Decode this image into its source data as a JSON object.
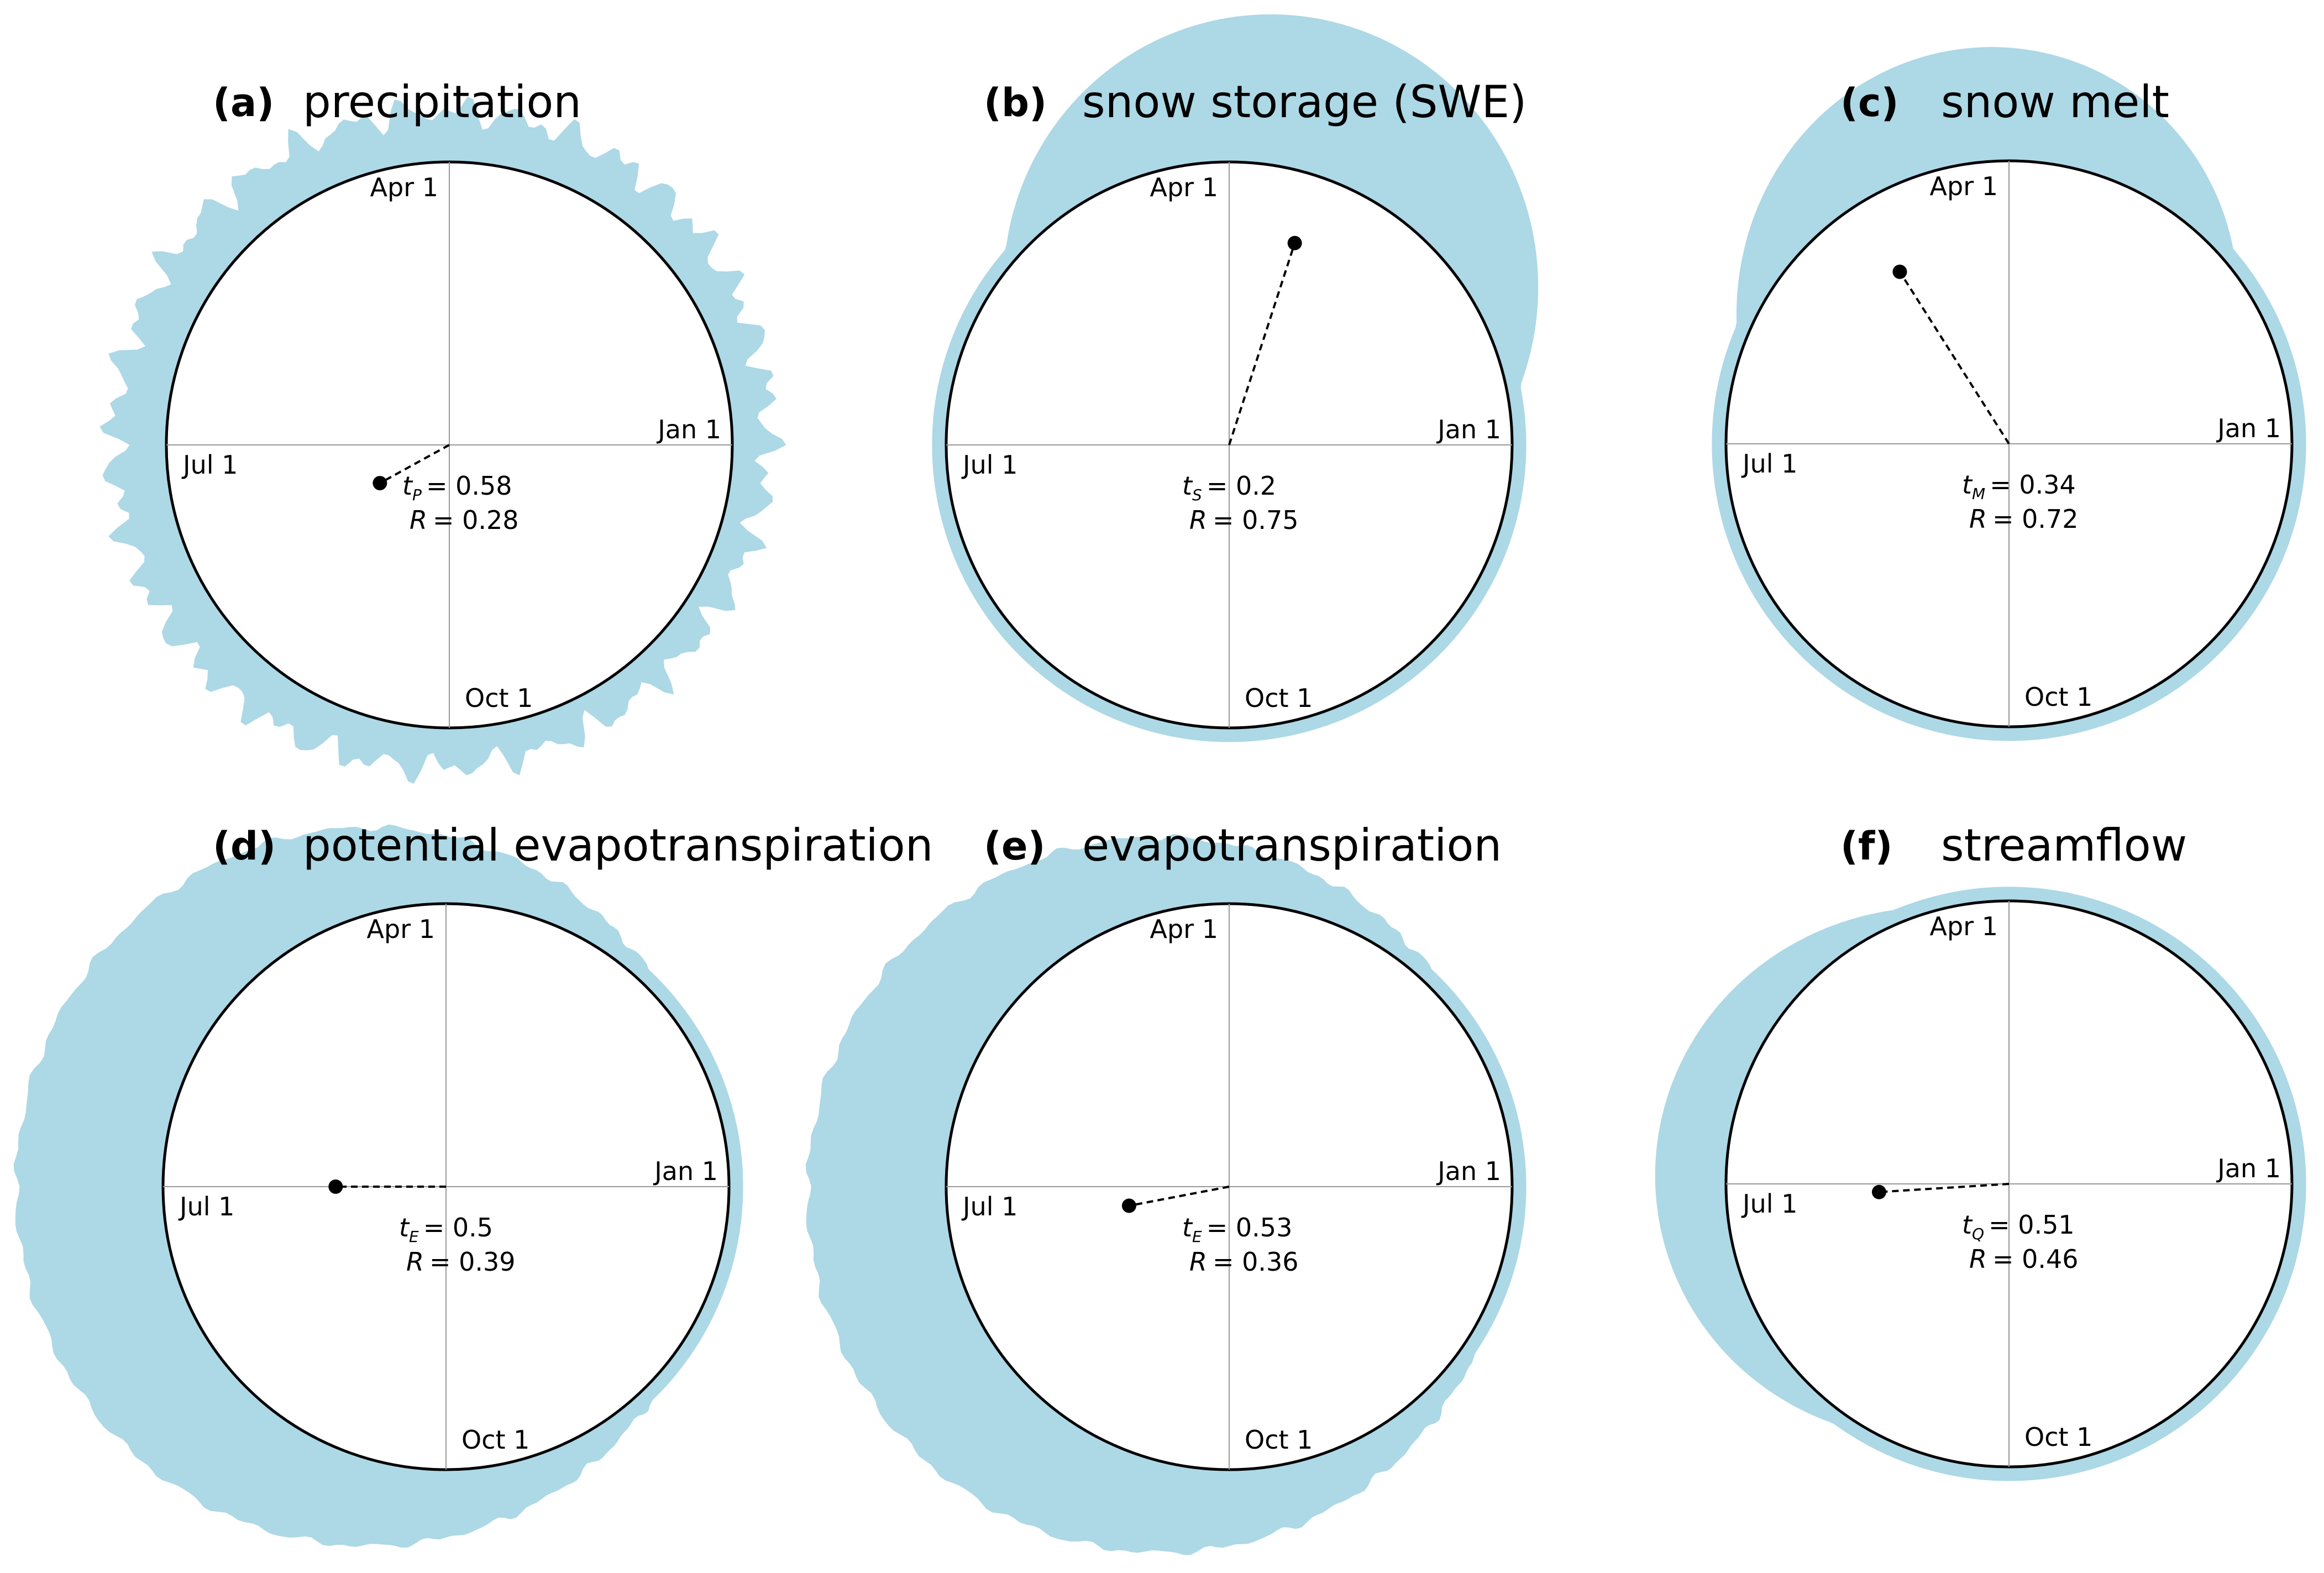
{
  "chart_data": [
    {
      "type": "polar-area",
      "letter": "(a)",
      "title": "precipitation",
      "axis_labels": {
        "east": "Jan 1",
        "north": "Apr 1",
        "west": "Jul 1",
        "south": "Oct 1"
      },
      "timing_label": "= 0.58",
      "timing_symbol": "P",
      "t_value": 0.58,
      "r_label": "= 0.28",
      "r_value": 0.28,
      "envelope": {
        "base": 1.16,
        "cos1": -0.03,
        "sin1": 0.02,
        "cos2": 0.0,
        "sin2": 0.01,
        "noise": 0.055
      },
      "color": "#add8e6"
    },
    {
      "type": "polar-area",
      "letter": "(b)",
      "title": "snow storage (SWE)",
      "axis_labels": {
        "east": "Jan 1",
        "north": "Apr 1",
        "west": "Jul 1",
        "south": "Oct 1"
      },
      "timing_label": "= 0.2",
      "timing_symbol": "S",
      "t_value": 0.2,
      "r_label": "= 0.75",
      "r_value": 0.75,
      "envelope": {
        "base": 0.86,
        "cos1": 0.16,
        "sin1": 0.55,
        "cos2": -0.1,
        "sin2": 0.04,
        "noise": 0.0
      },
      "color": "#add8e6"
    },
    {
      "type": "polar-area",
      "letter": "(c)",
      "title": "snow melt",
      "axis_labels": {
        "east": "Jan 1",
        "north": "Apr 1",
        "west": "Jul 1",
        "south": "Oct 1"
      },
      "timing_label": "= 0.34",
      "timing_symbol": "M",
      "t_value": 0.34,
      "r_label": "= 0.72",
      "r_value": 0.72,
      "envelope": {
        "base": 0.88,
        "cos1": -0.1,
        "sin1": 0.4,
        "cos2": -0.12,
        "sin2": 0.0,
        "noise": 0.0
      },
      "color": "#add8e6"
    },
    {
      "type": "polar-area",
      "letter": "(d)",
      "title": "potential evapotranspiration",
      "axis_labels": {
        "east": "Jan 1",
        "north": "Apr 1",
        "west": "Jul 1",
        "south": "Oct 1"
      },
      "timing_label": "= 0.5",
      "timing_symbol": "E",
      "t_value": 0.5,
      "r_label": "= 0.39",
      "r_value": 0.39,
      "envelope": {
        "base": 1.24,
        "cos1": -0.28,
        "sin1": 0.0,
        "cos2": 0.0,
        "sin2": 0.0,
        "noise": 0.012
      },
      "color": "#add8e6"
    },
    {
      "type": "polar-area",
      "letter": "(e)",
      "title": "evapotranspiration",
      "axis_labels": {
        "east": "Jan 1",
        "north": "Apr 1",
        "west": "Jul 1",
        "south": "Oct 1"
      },
      "timing_label": "=  0.53",
      "timing_symbol": "E",
      "t_value": 0.53,
      "r_label": "= 0.36",
      "r_value": 0.36,
      "envelope": {
        "base": 1.24,
        "cos1": -0.25,
        "sin1": -0.03,
        "cos2": 0.0,
        "sin2": 0.0,
        "noise": 0.012
      },
      "color": "#add8e6"
    },
    {
      "type": "polar-area",
      "letter": "(f)",
      "title": "streamflow",
      "axis_labels": {
        "east": "Jan 1",
        "north": "Apr 1",
        "west": "Jul 1",
        "south": "Oct 1"
      },
      "timing_label": "= 0.51",
      "timing_symbol": "Q",
      "t_value": 0.51,
      "r_label": "= 0.46",
      "r_value": 0.46,
      "envelope": {
        "base": 0.97,
        "cos1": -0.22,
        "sin1": 0.04,
        "cos2": 0.06,
        "sin2": 0.0,
        "noise": 0.0
      },
      "color": "#add8e6"
    }
  ]
}
